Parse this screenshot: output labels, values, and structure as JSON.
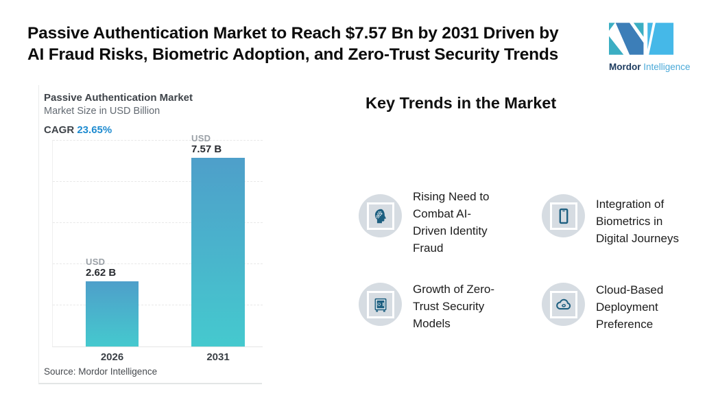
{
  "colors": {
    "cagr_blue": "#1E8BD0",
    "bar_top": "#4E9FCA",
    "bar_bottom": "#45C9CE",
    "icon_teal": "#1D5F80",
    "icon_circle_bg": "#D6DCE2",
    "logo_teal": "#3BAEC3",
    "logo_blue": "#3C7EB8",
    "logo_light_blue": "#45B8E8",
    "logo_navy": "#1B3A5E",
    "logo_text_blue": "#4AA9D8"
  },
  "header": {
    "title": "Passive Authentication Market to Reach $7.57 Bn by 2031 Driven by\nAI Fraud Risks, Biometric Adoption, and Zero-Trust Security Trends",
    "logo": {
      "name_bold": "Mordor",
      "name_light": "Intelligence"
    }
  },
  "chart_card": {
    "title": "Passive Authentication Market",
    "subtitle": "Market Size in USD Billion",
    "cagr_label": "CAGR",
    "cagr_value": "23.65%",
    "source": "Source: Mordor Intelligence"
  },
  "chart_data": {
    "type": "bar",
    "title": "Passive Authentication Market",
    "ylabel": "Market Size in USD Billion",
    "cagr_pct": 23.65,
    "categories": [
      "2026",
      "2031"
    ],
    "values": [
      2.62,
      7.57
    ],
    "bar_labels": [
      {
        "prefix": "USD",
        "value": "2.62 B"
      },
      {
        "prefix": "USD",
        "value": "7.57 B"
      }
    ],
    "ylim": [
      0,
      8.3
    ],
    "gridlines": "dashed-horizontal",
    "legend": "none",
    "source": "Source: Mordor Intelligence"
  },
  "trends": {
    "heading": "Key Trends in the Market",
    "items": [
      {
        "icon": "head-gears-icon",
        "label": "Rising Need to\nCombat AI-\nDriven Identity\nFraud"
      },
      {
        "icon": "smartphone-icon",
        "label": "Integration of\nBiometrics in\nDigital Journeys"
      },
      {
        "icon": "safe-vault-icon",
        "label": "Growth of Zero-\nTrust Security\nModels"
      },
      {
        "icon": "cloud-sync-icon",
        "label": "Cloud-Based\nDeployment\nPreference"
      }
    ]
  }
}
